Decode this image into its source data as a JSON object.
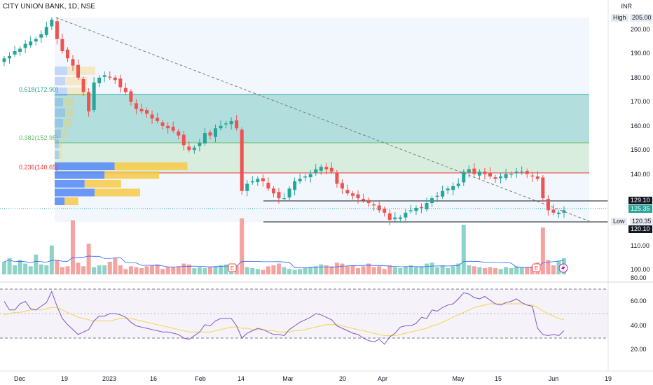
{
  "header": {
    "title": "CITY UNION BANK, 1D, NSE",
    "currency": "INR"
  },
  "price_labels": {
    "high_label": "High",
    "high_value": "205.00",
    "resistance_value": "129.10",
    "last_value": "125.35",
    "low_label": "Low",
    "low_value": "120.35",
    "support_value": "120.10"
  },
  "fib_levels": [
    {
      "label": "0.618(172.90)",
      "value": 172.9
    },
    {
      "label": "0.382(152.95)",
      "value": 152.95
    },
    {
      "label": "0.236(140.65)",
      "value": 140.65
    }
  ],
  "price_axis_ticks": [
    "200.00",
    "190.00",
    "180.00",
    "170.00",
    "160.00",
    "150.00",
    "140.00",
    "110.00",
    "100.00"
  ],
  "volume_axis_tick": "80.00",
  "rsi_axis_ticks": [
    "60.00",
    "40.00",
    "20.00"
  ],
  "x_axis_ticks": [
    "Dec",
    "19",
    "2023",
    "16",
    "Feb",
    "14",
    "Mar",
    "20",
    "Apr",
    "May",
    "15",
    "Jun",
    "19"
  ],
  "colors": {
    "up": "#26a69a",
    "down": "#ef5350",
    "volume_up": "#8fd2c6",
    "volume_down": "#f4a3a1",
    "rsi_line": "#7e57c2",
    "rsi_ma": "#f2d64f",
    "fib_green": "#b7e1cd",
    "fib_teal": "#80cbc4",
    "red_line": "#e53935",
    "vp_blue": "#5b8df5",
    "vp_yellow": "#f7c948"
  },
  "chart_data": {
    "type": "candlestick",
    "title": "CITY UNION BANK, 1D, NSE",
    "ylabel": "INR",
    "ylim": [
      100,
      205
    ],
    "x_start": "Dec",
    "close_series": [
      188,
      189,
      191,
      192,
      194,
      195,
      196,
      198,
      201,
      204,
      196,
      191,
      188,
      185,
      180,
      174,
      166,
      178,
      180,
      181,
      180,
      179,
      176,
      174,
      170,
      167,
      166,
      165,
      163,
      162,
      160,
      159,
      158,
      156,
      152,
      150,
      151,
      153,
      157,
      156,
      159,
      160,
      161,
      162,
      159,
      133,
      136,
      137,
      138,
      137,
      134,
      132,
      130,
      130,
      134,
      137,
      138,
      139,
      140,
      142,
      143,
      142,
      141,
      136,
      134,
      132,
      131,
      130,
      129,
      128,
      127,
      125,
      124,
      121,
      122,
      122,
      124,
      125,
      126,
      126,
      128,
      130,
      131,
      133,
      134,
      135,
      136,
      141,
      142,
      140,
      141,
      140,
      139,
      138,
      139,
      140,
      140,
      141,
      141,
      140,
      139,
      138,
      130,
      125,
      124,
      124,
      125
    ],
    "volume_series": [
      14,
      18,
      10,
      16,
      12,
      9,
      22,
      11,
      10,
      32,
      16,
      8,
      9,
      60,
      13,
      9,
      34,
      8,
      10,
      10,
      14,
      18,
      10,
      6,
      9,
      8,
      7,
      9,
      10,
      11,
      6,
      8,
      8,
      9,
      12,
      11,
      7,
      8,
      7,
      8,
      9,
      10,
      11,
      12,
      10,
      62,
      8,
      7,
      6,
      5,
      9,
      10,
      12,
      8,
      6,
      5,
      6,
      7,
      8,
      9,
      11,
      10,
      9,
      13,
      12,
      9,
      10,
      7,
      9,
      12,
      8,
      9,
      6,
      10,
      8,
      7,
      9,
      10,
      8,
      9,
      12,
      13,
      8,
      10,
      7,
      9,
      12,
      55,
      10,
      9,
      8,
      7,
      8,
      7,
      6,
      8,
      7,
      9,
      8,
      8,
      9,
      13,
      52,
      16,
      10,
      15,
      18
    ],
    "rsi_series": [
      60,
      53,
      53,
      58,
      60,
      54,
      53,
      56,
      59,
      68,
      56,
      46,
      41,
      37,
      33,
      35,
      37,
      44,
      48,
      48,
      50,
      50,
      49,
      47,
      43,
      40,
      39,
      38,
      37,
      36,
      35,
      35,
      34,
      33,
      30,
      29,
      32,
      35,
      41,
      40,
      44,
      46,
      46,
      46,
      40,
      30,
      34,
      36,
      38,
      37,
      35,
      33,
      33,
      32,
      37,
      40,
      43,
      45,
      47,
      50,
      49,
      47,
      45,
      40,
      38,
      36,
      34,
      33,
      30,
      28,
      27,
      29,
      25,
      31,
      34,
      39,
      40,
      40,
      42,
      47,
      46,
      53,
      52,
      55,
      57,
      58,
      62,
      67,
      66,
      63,
      62,
      64,
      61,
      58,
      57,
      59,
      60,
      62,
      59,
      57,
      56,
      38,
      33,
      32,
      33,
      32,
      36
    ],
    "rsi_ma_series": [
      49,
      50,
      51,
      51,
      52,
      53,
      53,
      53,
      54,
      55,
      55,
      53,
      51,
      49,
      47,
      46,
      45,
      44,
      44,
      44,
      44,
      45,
      46,
      46,
      46,
      45,
      44,
      43,
      42,
      41,
      40,
      39,
      38,
      37,
      36,
      35,
      35,
      35,
      35,
      35,
      36,
      37,
      38,
      39,
      39,
      38,
      38,
      37,
      37,
      37,
      36,
      36,
      35,
      35,
      35,
      36,
      36,
      37,
      38,
      39,
      40,
      41,
      41,
      41,
      40,
      39,
      38,
      37,
      36,
      35,
      34,
      33,
      32,
      32,
      32,
      33,
      34,
      35,
      36,
      37,
      38,
      40,
      41,
      43,
      45,
      47,
      49,
      51,
      53,
      55,
      56,
      57,
      58,
      58,
      58,
      58,
      58,
      58,
      58,
      57,
      57,
      55,
      52,
      50,
      48,
      46,
      45
    ],
    "rsi_ylim": [
      20,
      80
    ],
    "rsi_bands": [
      30,
      70
    ],
    "levels": {
      "resistance": 129.1,
      "last": 125.35,
      "low": 120.35,
      "support": 120.1,
      "high": 205.0
    },
    "trendline": {
      "from_high": 205.0,
      "to_low": 120.35
    }
  }
}
